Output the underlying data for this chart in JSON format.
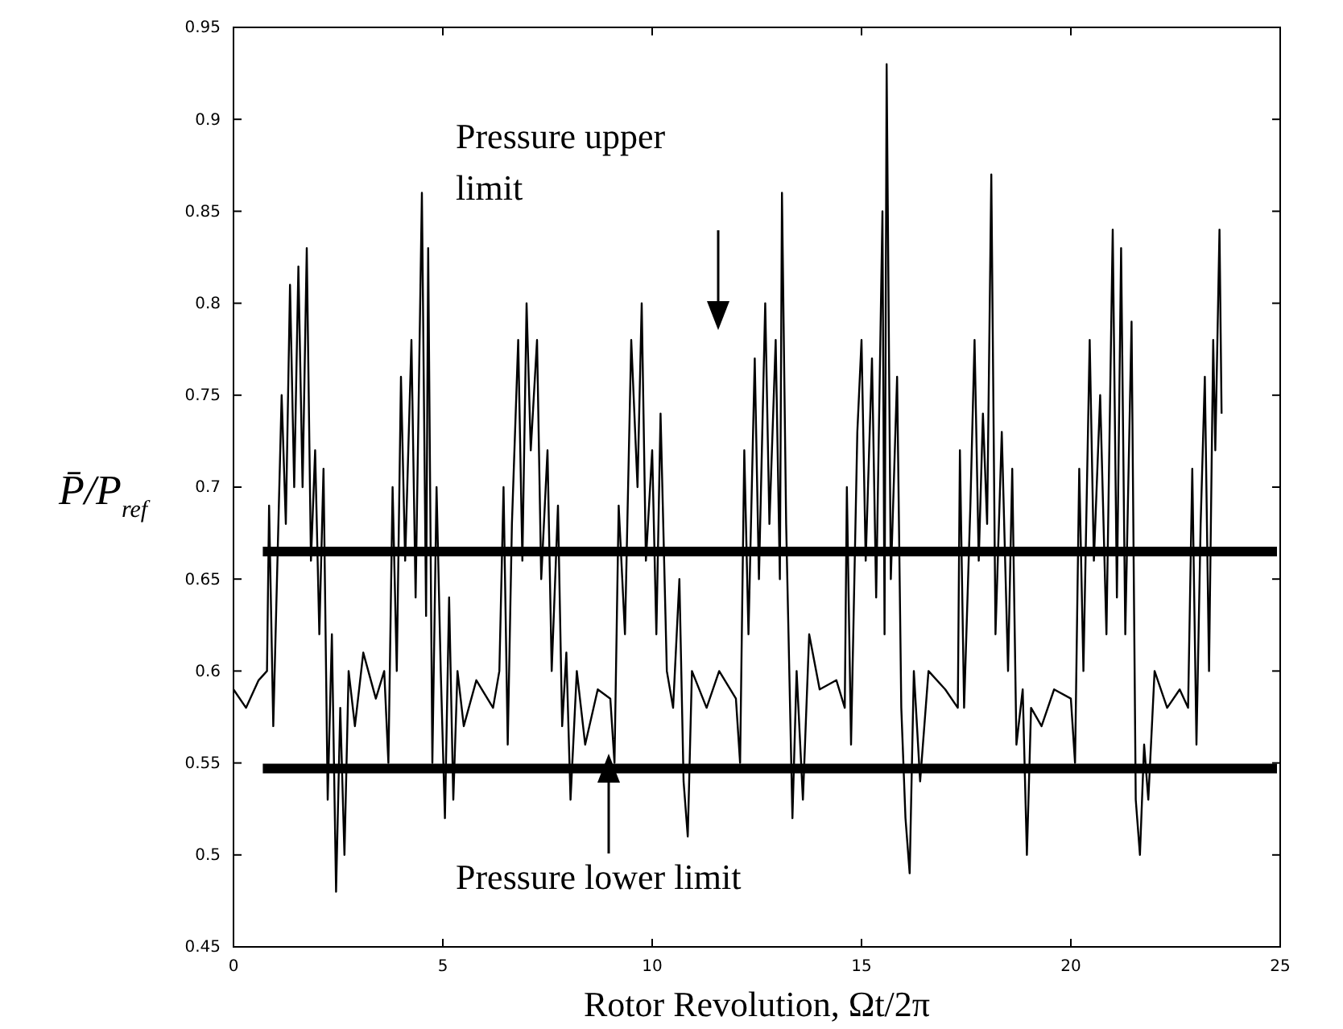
{
  "chart_data": {
    "type": "line",
    "xlabel": "Rotor Revolution, Ωt/2π",
    "ylabel": "P̄/P$_{ref}$",
    "xlim": [
      0,
      25
    ],
    "xticks": [
      0,
      5,
      10,
      15,
      20,
      25
    ],
    "ylim": [
      0.45,
      0.95
    ],
    "yticks": [
      0.45,
      0.5,
      0.55,
      0.6,
      0.65,
      0.7,
      0.75,
      0.8,
      0.85,
      0.9,
      0.95
    ],
    "grid": false,
    "marker": "none",
    "line_style": "solid",
    "ref_lines": [
      {
        "axis": "y",
        "value": 0.665,
        "color": "#000000"
      },
      {
        "axis": "y",
        "value": 0.547,
        "color": "#000000"
      }
    ],
    "annotations": [
      "Pressure upper limit",
      "Pressure lower limit"
    ],
    "series": [
      {
        "color": "#000000",
        "x": [
          0,
          0.3,
          0.6,
          0.8,
          0.85,
          0.95,
          1.05,
          1.15,
          1.25,
          1.35,
          1.45,
          1.55,
          1.65,
          1.75,
          1.85,
          1.95,
          2.05,
          2.15,
          2.25,
          2.35,
          2.45,
          2.55,
          2.65,
          2.75,
          2.9,
          3.1,
          3.4,
          3.6,
          3.7,
          3.8,
          3.9,
          4.0,
          4.1,
          4.25,
          4.35,
          4.5,
          4.6,
          4.65,
          4.75,
          4.85,
          4.95,
          5.05,
          5.15,
          5.25,
          5.35,
          5.5,
          5.8,
          6.2,
          6.35,
          6.45,
          6.55,
          6.65,
          6.8,
          6.9,
          7.0,
          7.1,
          7.25,
          7.35,
          7.5,
          7.6,
          7.75,
          7.85,
          7.95,
          8.05,
          8.2,
          8.4,
          8.7,
          9.0,
          9.1,
          9.2,
          9.35,
          9.5,
          9.65,
          9.75,
          9.85,
          10.0,
          10.1,
          10.2,
          10.35,
          10.5,
          10.65,
          10.75,
          10.85,
          10.95,
          11.3,
          11.6,
          12.0,
          12.1,
          12.2,
          12.3,
          12.45,
          12.55,
          12.7,
          12.8,
          12.95,
          13.05,
          13.1,
          13.2,
          13.35,
          13.45,
          13.6,
          13.75,
          14.0,
          14.4,
          14.6,
          14.65,
          14.75,
          14.9,
          15.0,
          15.1,
          15.25,
          15.35,
          15.5,
          15.55,
          15.6,
          15.7,
          15.85,
          15.95,
          16.05,
          16.15,
          16.25,
          16.4,
          16.6,
          17.0,
          17.3,
          17.35,
          17.45,
          17.6,
          17.7,
          17.8,
          17.9,
          18.0,
          18.1,
          18.2,
          18.35,
          18.5,
          18.6,
          18.7,
          18.85,
          18.95,
          19.05,
          19.3,
          19.6,
          20.0,
          20.1,
          20.2,
          20.3,
          20.45,
          20.55,
          20.7,
          20.85,
          21.0,
          21.1,
          21.2,
          21.3,
          21.45,
          21.55,
          21.65,
          21.75,
          21.85,
          22.0,
          22.3,
          22.6,
          22.8,
          22.9,
          23.0,
          23.1,
          23.2,
          23.3,
          23.4,
          23.45,
          23.55,
          23.6
        ],
        "values": [
          0.59,
          0.58,
          0.595,
          0.6,
          0.69,
          0.57,
          0.66,
          0.75,
          0.68,
          0.81,
          0.7,
          0.82,
          0.7,
          0.83,
          0.66,
          0.72,
          0.62,
          0.71,
          0.53,
          0.62,
          0.48,
          0.58,
          0.5,
          0.6,
          0.57,
          0.61,
          0.585,
          0.6,
          0.55,
          0.7,
          0.6,
          0.76,
          0.66,
          0.78,
          0.64,
          0.86,
          0.63,
          0.83,
          0.55,
          0.7,
          0.6,
          0.52,
          0.64,
          0.53,
          0.6,
          0.57,
          0.595,
          0.58,
          0.6,
          0.7,
          0.56,
          0.68,
          0.78,
          0.66,
          0.8,
          0.72,
          0.78,
          0.65,
          0.72,
          0.6,
          0.69,
          0.57,
          0.61,
          0.53,
          0.6,
          0.56,
          0.59,
          0.585,
          0.55,
          0.69,
          0.62,
          0.78,
          0.7,
          0.8,
          0.66,
          0.72,
          0.62,
          0.74,
          0.6,
          0.58,
          0.65,
          0.54,
          0.51,
          0.6,
          0.58,
          0.6,
          0.585,
          0.55,
          0.72,
          0.62,
          0.77,
          0.65,
          0.8,
          0.68,
          0.78,
          0.65,
          0.86,
          0.68,
          0.52,
          0.6,
          0.53,
          0.62,
          0.59,
          0.595,
          0.58,
          0.7,
          0.56,
          0.73,
          0.78,
          0.66,
          0.77,
          0.64,
          0.85,
          0.62,
          0.93,
          0.65,
          0.76,
          0.58,
          0.52,
          0.49,
          0.6,
          0.54,
          0.6,
          0.59,
          0.58,
          0.72,
          0.58,
          0.69,
          0.78,
          0.66,
          0.74,
          0.68,
          0.87,
          0.62,
          0.73,
          0.6,
          0.71,
          0.56,
          0.59,
          0.5,
          0.58,
          0.57,
          0.59,
          0.585,
          0.55,
          0.71,
          0.6,
          0.78,
          0.66,
          0.75,
          0.62,
          0.84,
          0.64,
          0.83,
          0.62,
          0.79,
          0.53,
          0.5,
          0.56,
          0.53,
          0.6,
          0.58,
          0.59,
          0.58,
          0.71,
          0.56,
          0.68,
          0.76,
          0.6,
          0.78,
          0.72,
          0.84,
          0.74
        ]
      }
    ]
  }
}
